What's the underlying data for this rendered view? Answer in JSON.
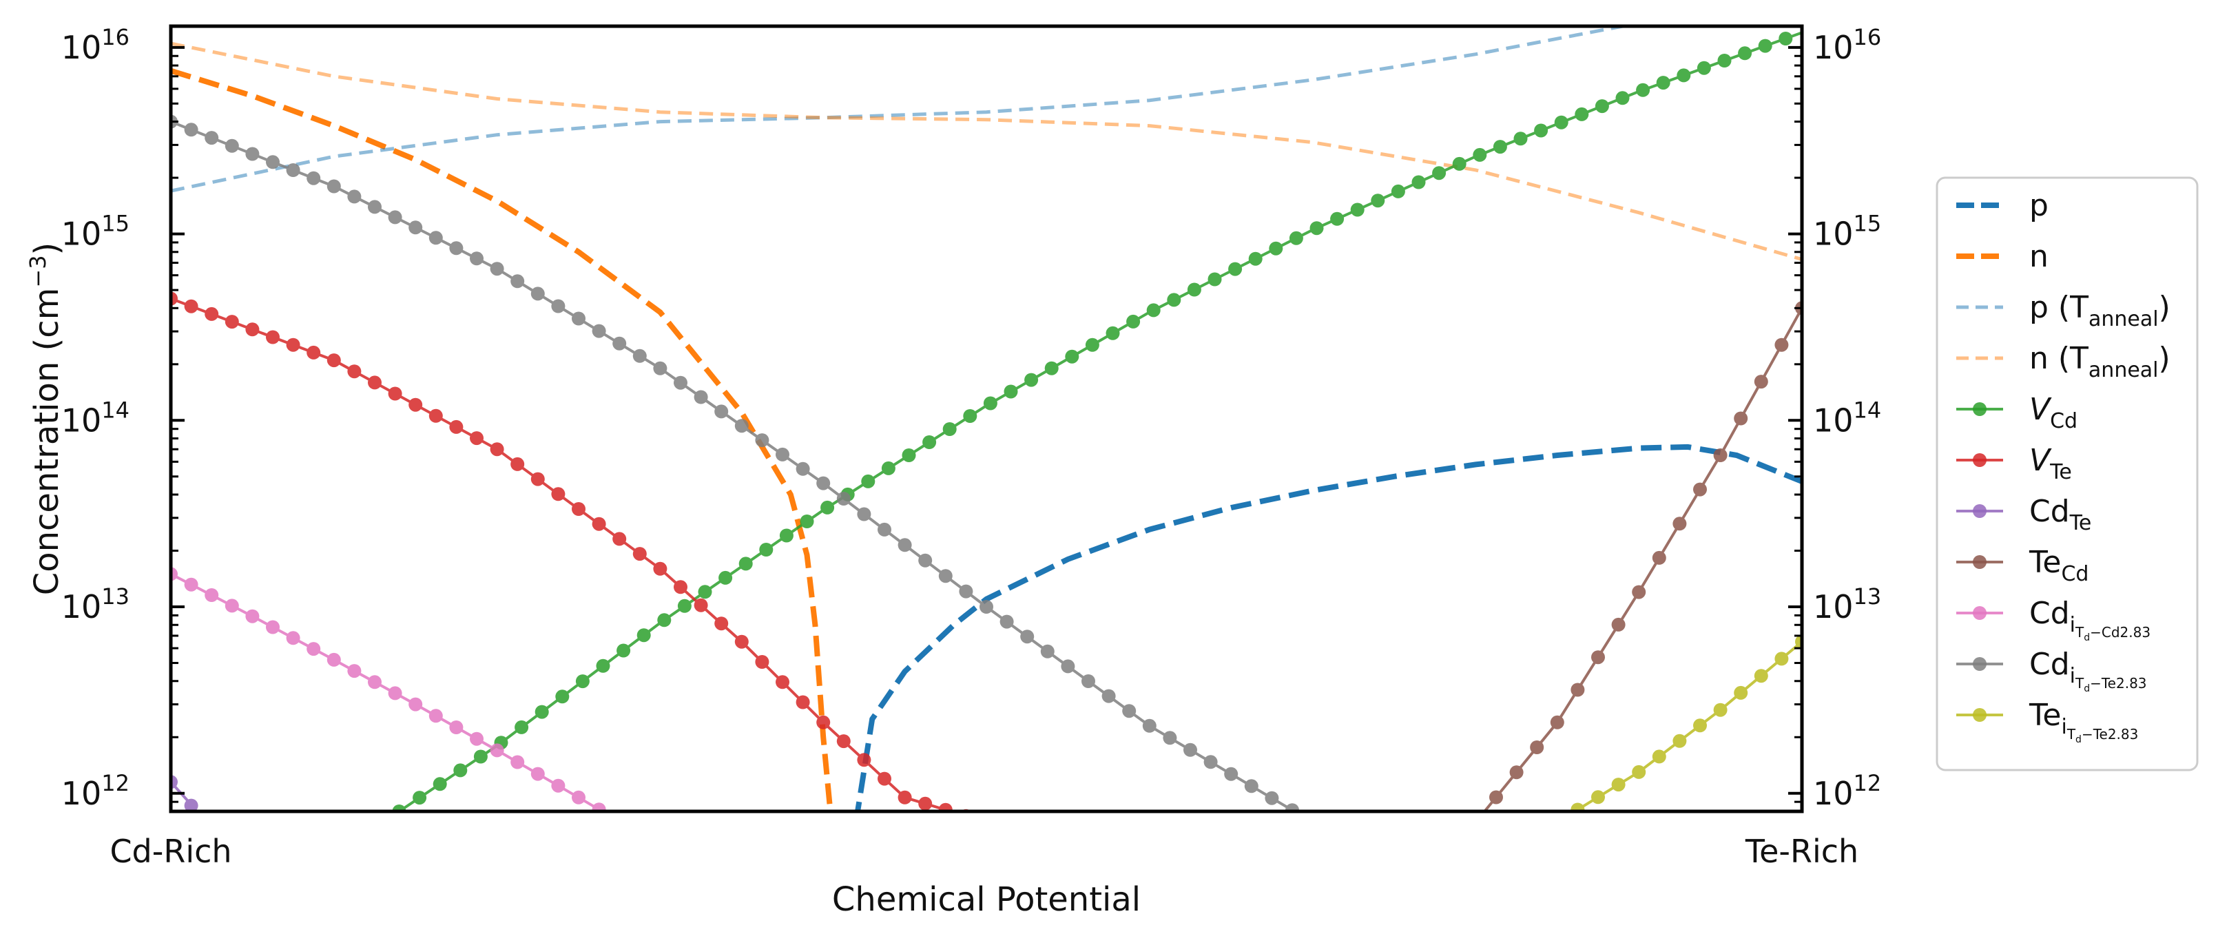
{
  "chart_data": {
    "type": "line",
    "xlabel": "Chemical Potential",
    "ylabel": "Concentration (cm",
    "ylabel_sup": "−3",
    "ylabel_end": ")",
    "x_tick_labels": {
      "left": "Cd-Rich",
      "right": "Te-Rich"
    },
    "xlim": [
      0,
      1
    ],
    "ylim": [
      800000000000.0,
      1.3e+16
    ],
    "yscale": "log",
    "y_tick_labels": [
      {
        "value": 1000000000000.0,
        "base": "10",
        "exp": "12"
      },
      {
        "value": 10000000000000.0,
        "base": "10",
        "exp": "13"
      },
      {
        "value": 100000000000000.0,
        "base": "10",
        "exp": "14"
      },
      {
        "value": 1000000000000000.0,
        "base": "10",
        "exp": "15"
      },
      {
        "value": 1e+16,
        "base": "10",
        "exp": "16"
      }
    ],
    "legend_position": "outside-right",
    "grid": false,
    "series": [
      {
        "id": "p",
        "name": "p",
        "color": "#1f77b4",
        "style": "dashed-thick",
        "opacity": 1,
        "x": [
          0.42,
          0.43,
          0.45,
          0.48,
          0.5,
          0.55,
          0.6,
          0.65,
          0.7,
          0.75,
          0.8,
          0.85,
          0.9,
          0.93,
          0.96,
          1.0
        ],
        "y": [
          700000000000.0,
          2500000000000.0,
          4500000000000.0,
          8000000000000.0,
          11000000000000.0,
          18000000000000.0,
          26000000000000.0,
          34000000000000.0,
          42000000000000.0,
          50000000000000.0,
          58000000000000.0,
          65000000000000.0,
          71000000000000.0,
          72000000000000.0,
          65000000000000.0,
          47000000000000.0
        ]
      },
      {
        "id": "n",
        "name": "n",
        "color": "#ff7f0e",
        "style": "dashed-thick",
        "opacity": 1,
        "x": [
          0.0,
          0.05,
          0.1,
          0.15,
          0.2,
          0.25,
          0.3,
          0.35,
          0.38,
          0.39,
          0.395,
          0.4,
          0.405
        ],
        "y": [
          7500000000000000.0,
          5500000000000000.0,
          3800000000000000.0,
          2500000000000000.0,
          1500000000000000.0,
          800000000000000.0,
          380000000000000.0,
          110000000000000.0,
          40000000000000.0,
          19000000000000.0,
          8000000000000.0,
          2000000000000.0,
          700000000000.0
        ]
      },
      {
        "id": "p_anneal",
        "name": "p (T",
        "sub": "anneal",
        "suffix": ")",
        "color": "#1f77b4",
        "style": "dashed-thin",
        "opacity": 0.5,
        "x": [
          0.0,
          0.1,
          0.2,
          0.3,
          0.4,
          0.5,
          0.6,
          0.7,
          0.8,
          0.9
        ],
        "y": [
          1700000000000000.0,
          2600000000000000.0,
          3400000000000000.0,
          4000000000000000.0,
          4200000000000000.0,
          4500000000000000.0,
          5200000000000000.0,
          6700000000000000.0,
          9200000000000000.0,
          1.35e+16
        ]
      },
      {
        "id": "n_anneal",
        "name": "n (T",
        "sub": "anneal",
        "suffix": ")",
        "color": "#ff7f0e",
        "style": "dashed-thin",
        "opacity": 0.5,
        "x": [
          0.0,
          0.1,
          0.2,
          0.3,
          0.4,
          0.5,
          0.6,
          0.7,
          0.8,
          0.9,
          1.0
        ],
        "y": [
          1.05e+16,
          7000000000000000.0,
          5300000000000000.0,
          4500000000000000.0,
          4200000000000000.0,
          4100000000000000.0,
          3800000000000000.0,
          3100000000000000.0,
          2200000000000000.0,
          1300000000000000.0,
          730000000000000.0
        ]
      },
      {
        "id": "V_Cd",
        "name": "V",
        "sub": "Cd",
        "italic": true,
        "color": "#2ca02c",
        "style": "marker",
        "opacity": 0.85,
        "x": [
          0.14,
          0.2,
          0.3,
          0.4,
          0.5,
          0.6,
          0.7,
          0.8,
          0.9,
          1.0
        ],
        "y": [
          800000000000.0,
          1800000000000.0,
          8200000000000.0,
          33000000000000.0,
          120000000000000.0,
          380000000000000.0,
          1050000000000000.0,
          2600000000000000.0,
          5800000000000000.0,
          1.2e+16
        ]
      },
      {
        "id": "V_Te",
        "name": "V",
        "sub": "Te",
        "italic": true,
        "color": "#d62728",
        "style": "marker",
        "opacity": 0.85,
        "x": [
          0.0,
          0.1,
          0.2,
          0.3,
          0.35,
          0.4,
          0.45,
          0.5
        ],
        "y": [
          450000000000000.0,
          210000000000000.0,
          70000000000000.0,
          16000000000000.0,
          6500000000000.0,
          2400000000000.0,
          950000000000.0,
          700000000000.0
        ]
      },
      {
        "id": "Cd_Te",
        "name": "Cd",
        "sub": "Te",
        "color": "#9467bd",
        "style": "marker",
        "opacity": 0.85,
        "x": [
          0.0,
          0.01,
          0.02
        ],
        "y": [
          1150000000000.0,
          920000000000.0,
          700000000000.0
        ]
      },
      {
        "id": "Te_Cd",
        "name": "Te",
        "sub": "Cd",
        "color": "#8c564b",
        "style": "marker",
        "opacity": 0.85,
        "x": [
          0.8,
          0.85,
          0.9,
          0.95,
          1.0
        ],
        "y": [
          700000000000.0,
          2400000000000.0,
          12000000000000.0,
          65000000000000.0,
          400000000000000.0
        ]
      },
      {
        "id": "Cd_i_Cd",
        "name": "Cd",
        "sub": "i",
        "subsub": "T",
        "subsubsub": "d",
        "subtail": "−Cd2.83",
        "color": "#e377c2",
        "style": "marker",
        "opacity": 0.85,
        "x": [
          0.0,
          0.05,
          0.1,
          0.15,
          0.2,
          0.25,
          0.27
        ],
        "y": [
          15000000000000.0,
          8900000000000.0,
          5200000000000.0,
          3000000000000.0,
          1700000000000.0,
          950000000000.0,
          750000000000.0
        ]
      },
      {
        "id": "Cd_i_Te",
        "name": "Cd",
        "sub": "i",
        "subsub": "T",
        "subsubsub": "d",
        "subtail": "−Te2.83",
        "color": "#7f7f7f",
        "style": "marker",
        "opacity": 0.85,
        "x": [
          0.0,
          0.1,
          0.2,
          0.3,
          0.4,
          0.5,
          0.6,
          0.7
        ],
        "y": [
          4000000000000000.0,
          1800000000000000.0,
          650000000000000.0,
          190000000000000.0,
          46000000000000.0,
          10000000000000.0,
          2300000000000.0,
          700000000000.0
        ]
      },
      {
        "id": "Te_i_Te",
        "name": "Te",
        "sub": "i",
        "subsub": "T",
        "subsubsub": "d",
        "subtail": "−Te2.83",
        "color": "#bcbd22",
        "style": "marker",
        "opacity": 0.85,
        "x": [
          0.85,
          0.9,
          0.95,
          1.0
        ],
        "y": [
          700000000000.0,
          1300000000000.0,
          2800000000000.0,
          6500000000000.0
        ]
      }
    ]
  }
}
